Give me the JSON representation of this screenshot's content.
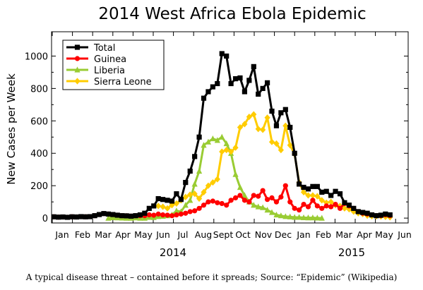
{
  "caption": "A typical disease threat – contained before it spreads; Source: “Epidemic” (Wikipedia)",
  "chart_data": {
    "type": "line",
    "title": "2014 West Africa Ebola Epidemic",
    "xlabel": "",
    "ylabel": "New Cases per Week",
    "ylim": [
      0,
      1100
    ],
    "y_ticks": [
      0,
      200,
      400,
      600,
      800,
      1000
    ],
    "x_range_weeks": [
      0,
      75
    ],
    "month_labels": [
      "Jan",
      "Feb",
      "Mar",
      "Apr",
      "May",
      "Jun",
      "Jul",
      "Aug",
      "Sept",
      "Oct",
      "Nov",
      "Dec",
      "Jan",
      "Feb",
      "Mar",
      "Apr",
      "May",
      "Jun"
    ],
    "year_labels": [
      "2014",
      "2015"
    ],
    "grid": false,
    "legend_placement": "top-left",
    "series": [
      {
        "name": "Total",
        "color": "#000000",
        "marker": "square",
        "x": [
          0,
          1,
          2,
          3,
          4,
          5,
          6,
          7,
          8,
          9,
          10,
          11,
          12,
          13,
          14,
          15,
          16,
          17,
          18,
          19,
          20,
          21,
          22,
          23,
          24,
          25,
          26,
          27,
          28,
          29,
          30,
          31,
          32,
          33,
          34,
          35,
          36,
          37,
          38,
          39,
          40,
          41,
          42,
          43,
          44,
          45,
          46,
          47,
          48,
          49,
          50,
          51,
          52,
          53,
          54,
          55,
          56,
          57,
          58,
          59,
          60,
          61,
          62,
          63,
          64,
          65,
          66,
          67,
          68,
          69,
          70,
          71,
          72,
          73,
          74
        ],
        "values": [
          8,
          6,
          7,
          5,
          8,
          7,
          9,
          8,
          9,
          15,
          22,
          28,
          25,
          22,
          18,
          15,
          14,
          12,
          15,
          20,
          30,
          60,
          75,
          120,
          115,
          110,
          105,
          150,
          115,
          220,
          290,
          380,
          500,
          740,
          780,
          810,
          830,
          1015,
          1000,
          830,
          860,
          865,
          780,
          850,
          935,
          765,
          800,
          835,
          660,
          570,
          650,
          670,
          560,
          400,
          210,
          190,
          180,
          195,
          195,
          160,
          165,
          140,
          165,
          150,
          95,
          80,
          60,
          40,
          35,
          30,
          20,
          15,
          18,
          25,
          20
        ]
      },
      {
        "name": "Guinea",
        "color": "#ff0000",
        "marker": "circle",
        "x": [
          0,
          1,
          2,
          3,
          4,
          5,
          6,
          7,
          8,
          9,
          10,
          11,
          12,
          13,
          14,
          15,
          16,
          17,
          18,
          19,
          20,
          21,
          22,
          23,
          24,
          25,
          26,
          27,
          28,
          29,
          30,
          31,
          32,
          33,
          34,
          35,
          36,
          37,
          38,
          39,
          40,
          41,
          42,
          43,
          44,
          45,
          46,
          47,
          48,
          49,
          50,
          51,
          52,
          53,
          54,
          55,
          56,
          57,
          58,
          59,
          60,
          61,
          62,
          63,
          64,
          65,
          66,
          67,
          68,
          69,
          70,
          71,
          72,
          73,
          74
        ],
        "values": [
          8,
          6,
          7,
          5,
          8,
          7,
          9,
          8,
          9,
          15,
          22,
          28,
          25,
          22,
          18,
          15,
          14,
          12,
          15,
          15,
          15,
          20,
          18,
          25,
          20,
          18,
          15,
          20,
          25,
          30,
          40,
          45,
          60,
          80,
          100,
          105,
          95,
          90,
          80,
          110,
          125,
          140,
          110,
          100,
          140,
          135,
          170,
          115,
          125,
          100,
          130,
          200,
          100,
          60,
          50,
          85,
          70,
          110,
          75,
          60,
          75,
          70,
          85,
          60,
          90,
          75,
          60,
          40,
          30,
          25,
          20,
          15,
          15,
          20,
          15
        ]
      },
      {
        "name": "Liberia",
        "color": "#99cc33",
        "marker": "triangle",
        "x": [
          12,
          13,
          14,
          15,
          16,
          17,
          18,
          19,
          20,
          21,
          22,
          23,
          24,
          25,
          26,
          27,
          28,
          29,
          30,
          31,
          32,
          33,
          34,
          35,
          36,
          37,
          38,
          39,
          40,
          41,
          42,
          43,
          44,
          45,
          46,
          47,
          48,
          49,
          50,
          51,
          52,
          53,
          54,
          55,
          56,
          57,
          58,
          59
        ],
        "values": [
          0,
          3,
          2,
          1,
          0,
          0,
          2,
          0,
          0,
          5,
          4,
          10,
          12,
          15,
          20,
          45,
          40,
          80,
          110,
          210,
          290,
          450,
          470,
          490,
          480,
          500,
          460,
          400,
          270,
          190,
          140,
          100,
          80,
          70,
          65,
          50,
          35,
          20,
          15,
          10,
          8,
          5,
          5,
          3,
          2,
          2,
          1,
          0
        ],
        "label_x": [
          12,
          59
        ]
      },
      {
        "name": "Sierra Leone",
        "color": "#ffcc00",
        "marker": "diamond",
        "x": [
          23,
          24,
          25,
          26,
          27,
          28,
          29,
          30,
          31,
          32,
          33,
          34,
          35,
          36,
          37,
          38,
          39,
          40,
          41,
          42,
          43,
          44,
          45,
          46,
          47,
          48,
          49,
          50,
          51,
          52,
          53,
          54,
          55,
          56,
          57,
          58,
          59,
          60,
          61,
          62,
          63,
          64,
          65,
          66,
          67,
          68,
          69,
          70,
          71,
          72,
          73,
          74
        ],
        "values": [
          75,
          70,
          60,
          80,
          90,
          110,
          130,
          145,
          150,
          120,
          160,
          200,
          220,
          240,
          410,
          420,
          410,
          435,
          560,
          580,
          625,
          640,
          550,
          545,
          620,
          470,
          460,
          420,
          570,
          450,
          395,
          220,
          160,
          140,
          140,
          135,
          110,
          95,
          100,
          80,
          75,
          60,
          55,
          40,
          30,
          25,
          15,
          12,
          12,
          10,
          8,
          5
        ]
      }
    ]
  }
}
